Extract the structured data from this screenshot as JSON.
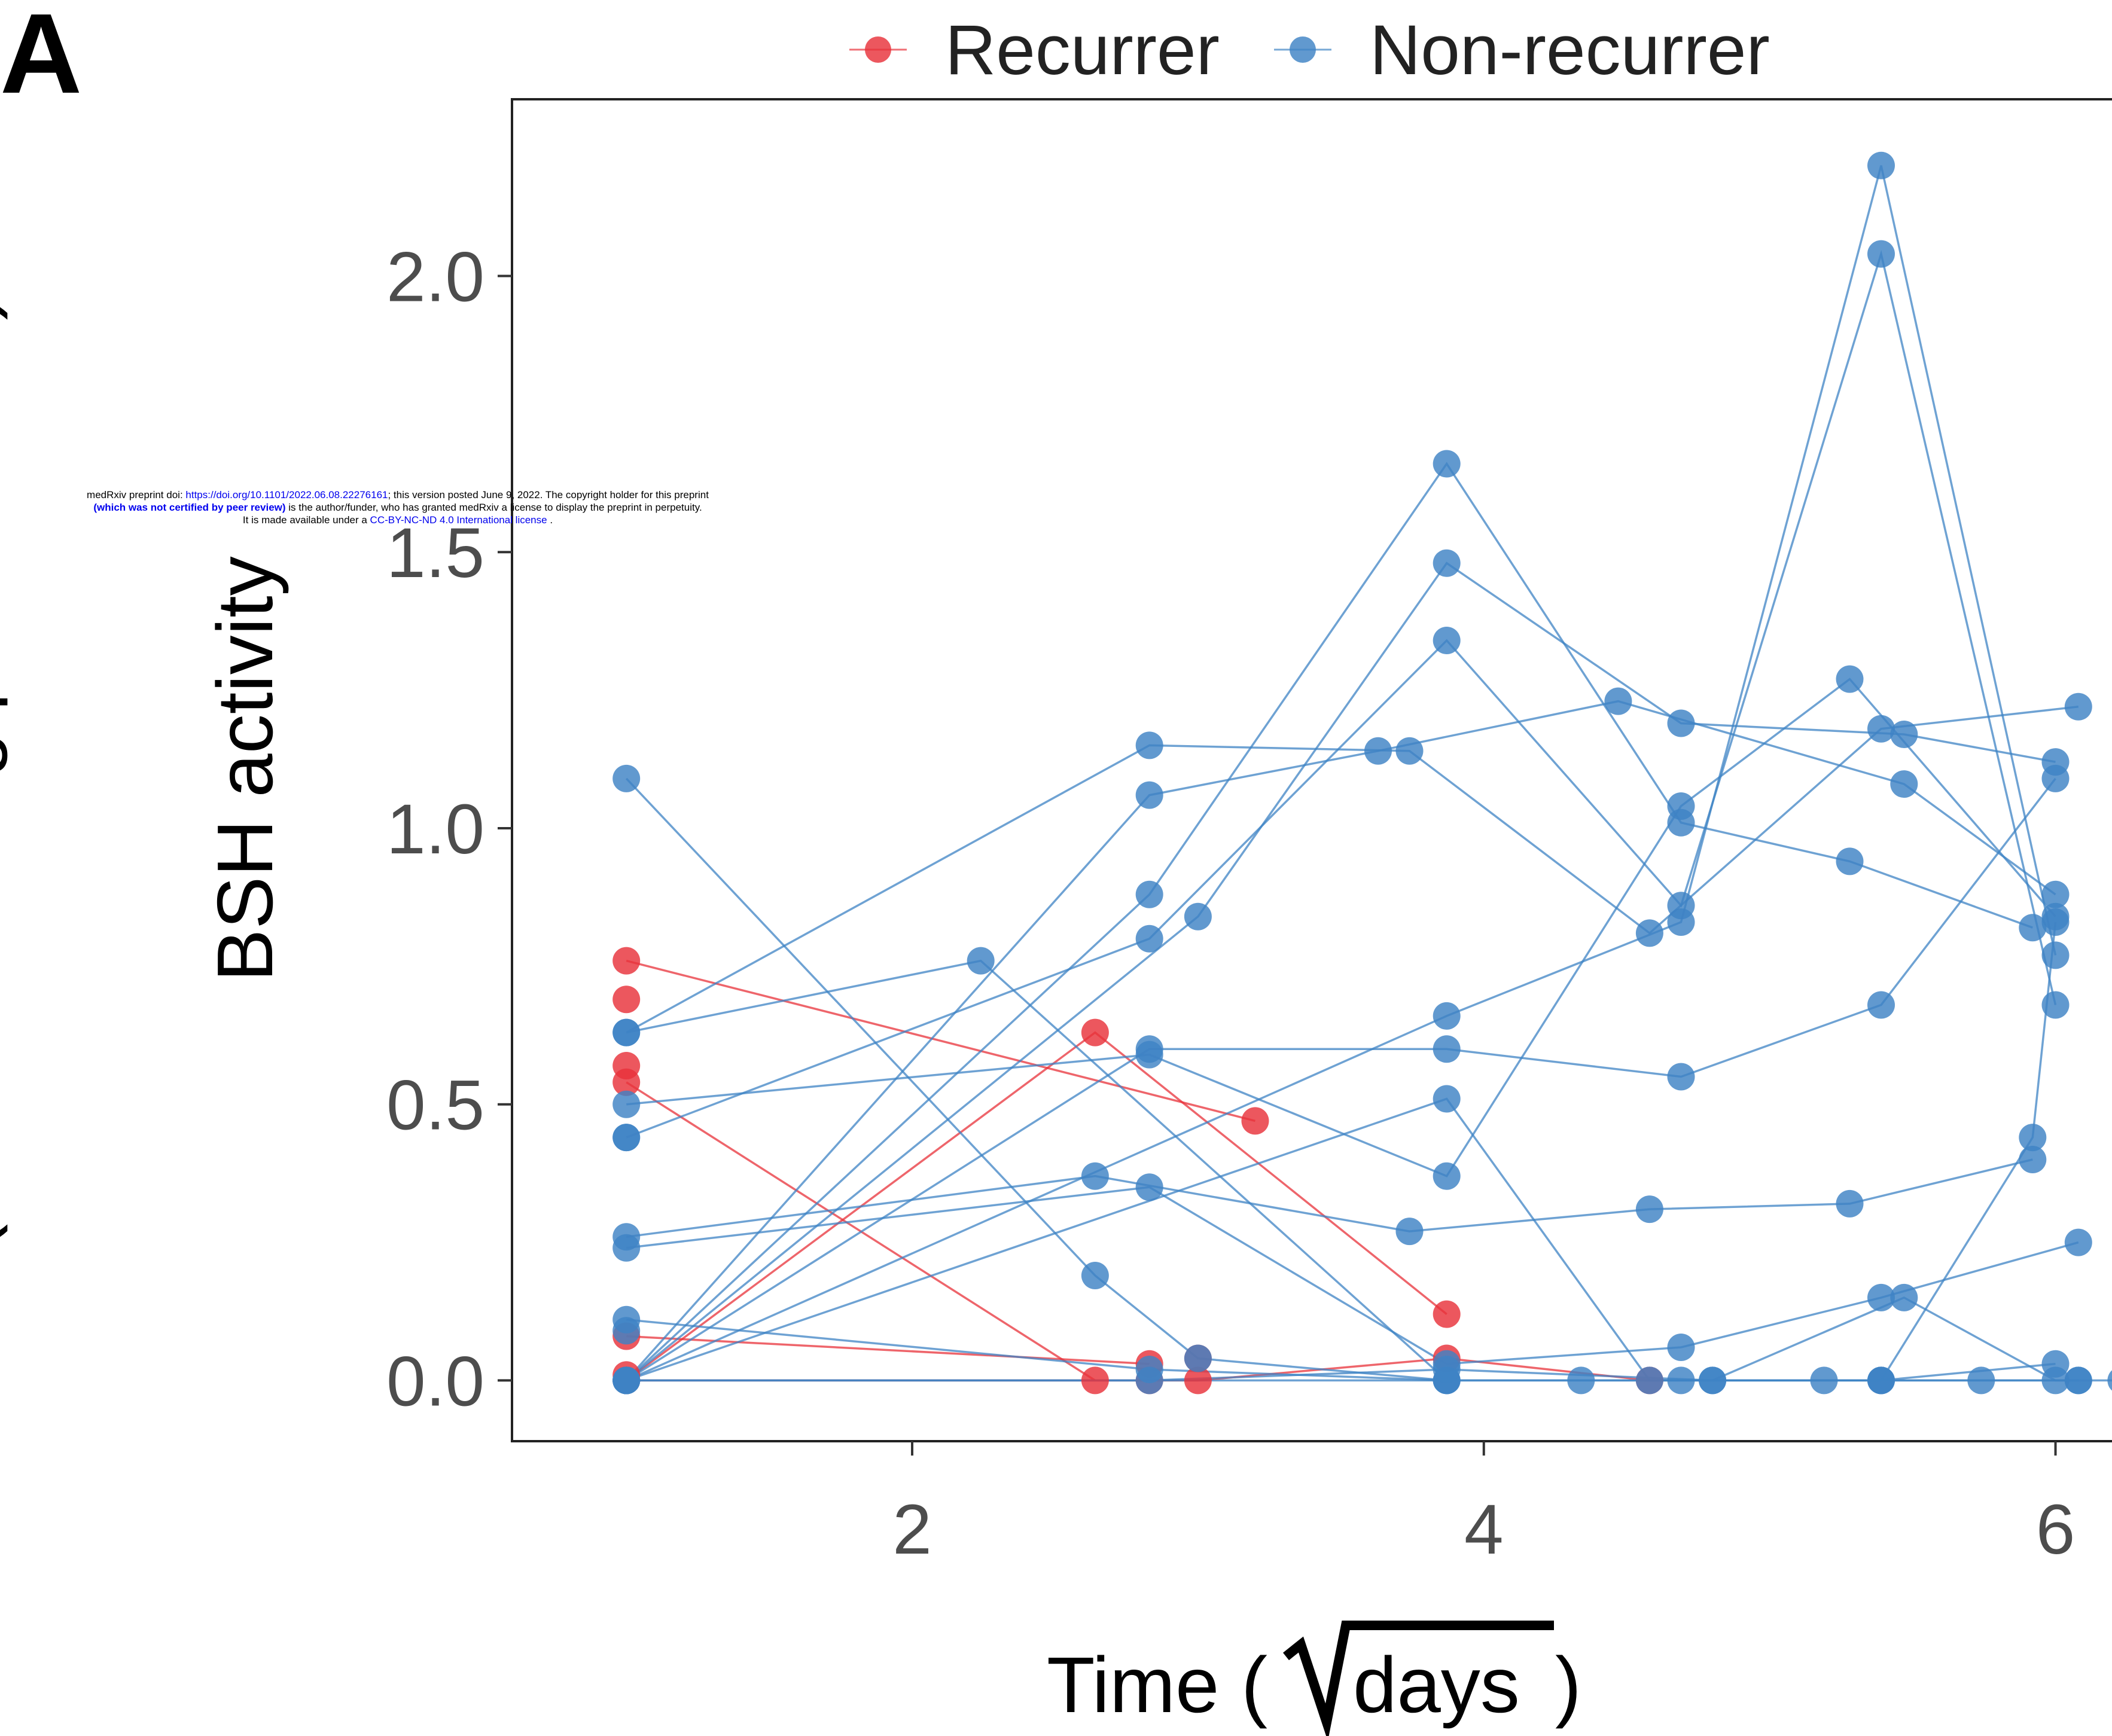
{
  "panel_label": "A",
  "notice": {
    "line1_prefix": "medRxiv preprint doi: ",
    "line1_link": "https://doi.org/10.1101/2022.06.08.22276161",
    "line1_suffix": "; this version posted June 9, 2022. The copyright holder for this preprint",
    "line2_link": "(which was not certified by peer review)",
    "line2_suffix": " is the author/funder, who has granted medRxiv a license to display the preprint in perpetuity.",
    "line3_prefix": "It is made available under a ",
    "line3_link": "CC-BY-NC-ND 4.0 International license",
    "line3_suffix": " ."
  },
  "chart_data": {
    "type": "line",
    "xlabel_prefix": "Time (",
    "xlabel_days": "days",
    "xlabel_suffix": ")",
    "ylabel_line1": "BSH activity",
    "ylabel_line2": "(nmol DCA/mg protein/min)",
    "xlim": [
      0.6,
      6.25
    ],
    "ylim": [
      -0.11,
      2.32
    ],
    "x_ticks": [
      2,
      4,
      6
    ],
    "x_tick_labels": [
      "2",
      "4",
      "6"
    ],
    "y_ticks": [
      0.0,
      0.5,
      1.0,
      1.5,
      2.0
    ],
    "y_tick_labels": [
      "0.0",
      "0.5",
      "1.0",
      "1.5",
      "2.0"
    ],
    "legend_position": "top",
    "groups": [
      {
        "name": "Recurrer",
        "color": "#e8323a"
      },
      {
        "name": "Non-recurrer",
        "color": "#3e83c4"
      }
    ],
    "series": [
      {
        "group": "Recurrer",
        "points": [
          [
            1.0,
            0.76
          ],
          [
            3.2,
            0.47
          ]
        ]
      },
      {
        "group": "Recurrer",
        "points": [
          [
            1.0,
            0.54
          ],
          [
            2.64,
            0.0
          ]
        ]
      },
      {
        "group": "Recurrer",
        "points": [
          [
            1.0,
            0.0
          ],
          [
            2.64,
            0.63
          ],
          [
            3.87,
            0.12
          ]
        ]
      },
      {
        "group": "Recurrer",
        "points": [
          [
            1.0,
            0.08
          ],
          [
            2.83,
            0.03
          ]
        ]
      },
      {
        "group": "Recurrer",
        "points": [
          [
            1.0,
            0.0
          ],
          [
            3.0,
            0.0
          ],
          [
            3.87,
            0.04
          ],
          [
            4.58,
            0.0
          ]
        ]
      },
      {
        "group": "Recurrer",
        "points": [
          [
            1.0,
            0.69
          ]
        ]
      },
      {
        "group": "Recurrer",
        "points": [
          [
            1.0,
            0.57
          ]
        ]
      },
      {
        "group": "Recurrer",
        "points": [
          [
            1.0,
            0.01
          ]
        ]
      },
      {
        "group": "Recurrer",
        "points": [
          [
            2.83,
            0.0
          ]
        ]
      },
      {
        "group": "Recurrer",
        "points": [
          [
            3.0,
            0.04
          ]
        ]
      },
      {
        "group": "Non-recurrer",
        "points": [
          [
            1.0,
            1.09
          ],
          [
            2.64,
            0.19
          ],
          [
            3.0,
            0.04
          ],
          [
            3.87,
            0.0
          ]
        ]
      },
      {
        "group": "Non-recurrer",
        "points": [
          [
            1.0,
            0.63
          ],
          [
            2.83,
            1.15
          ],
          [
            3.74,
            1.14
          ],
          [
            4.58,
            0.81
          ],
          [
            5.39,
            1.18
          ],
          [
            6.08,
            1.22
          ]
        ]
      },
      {
        "group": "Non-recurrer",
        "points": [
          [
            1.0,
            0.63
          ],
          [
            2.24,
            0.76
          ],
          [
            3.87,
            0.0
          ]
        ]
      },
      {
        "group": "Non-recurrer",
        "points": [
          [
            1.0,
            0.5
          ],
          [
            2.83,
            0.59
          ],
          [
            3.87,
            0.37
          ],
          [
            4.69,
            1.04
          ],
          [
            5.28,
            1.27
          ],
          [
            6.0,
            0.84
          ]
        ]
      },
      {
        "group": "Non-recurrer",
        "points": [
          [
            1.0,
            0.44
          ],
          [
            2.83,
            0.8
          ],
          [
            3.87,
            1.34
          ],
          [
            4.69,
            0.86
          ],
          [
            5.39,
            2.04
          ],
          [
            6.0,
            0.68
          ]
        ]
      },
      {
        "group": "Non-recurrer",
        "points": [
          [
            1.0,
            0.26
          ],
          [
            2.64,
            0.37
          ],
          [
            3.74,
            0.27
          ],
          [
            4.58,
            0.31
          ],
          [
            5.28,
            0.32
          ],
          [
            5.92,
            0.4
          ]
        ]
      },
      {
        "group": "Non-recurrer",
        "points": [
          [
            1.0,
            0.24
          ],
          [
            2.83,
            0.35
          ],
          [
            3.87,
            0.03
          ],
          [
            4.69,
            0.06
          ],
          [
            5.39,
            0.15
          ],
          [
            6.08,
            0.25
          ]
        ]
      },
      {
        "group": "Non-recurrer",
        "points": [
          [
            1.0,
            0.11
          ],
          [
            2.83,
            0.02
          ],
          [
            3.87,
            0.0
          ],
          [
            4.69,
            0.0
          ],
          [
            5.39,
            0.0
          ],
          [
            6.0,
            0.03
          ]
        ]
      },
      {
        "group": "Non-recurrer",
        "points": [
          [
            1.0,
            0.0
          ],
          [
            2.83,
            1.06
          ],
          [
            3.63,
            1.14
          ],
          [
            4.47,
            1.23
          ],
          [
            5.47,
            1.08
          ],
          [
            6.0,
            0.88
          ]
        ]
      },
      {
        "group": "Non-recurrer",
        "points": [
          [
            1.0,
            0.0
          ],
          [
            2.83,
            0.88
          ],
          [
            3.87,
            1.66
          ],
          [
            4.69,
            1.01
          ],
          [
            5.28,
            0.94
          ],
          [
            5.92,
            0.82
          ]
        ]
      },
      {
        "group": "Non-recurrer",
        "points": [
          [
            1.0,
            0.0
          ],
          [
            3.0,
            0.84
          ],
          [
            3.87,
            1.48
          ],
          [
            4.69,
            1.19
          ],
          [
            5.47,
            1.17
          ],
          [
            6.0,
            1.12
          ]
        ]
      },
      {
        "group": "Non-recurrer",
        "points": [
          [
            1.0,
            0.0
          ],
          [
            2.83,
            0.6
          ],
          [
            3.87,
            0.6
          ],
          [
            4.69,
            0.55
          ],
          [
            5.39,
            0.68
          ],
          [
            6.0,
            1.09
          ]
        ]
      },
      {
        "group": "Non-recurrer",
        "points": [
          [
            1.0,
            0.0
          ],
          [
            3.87,
            0.66
          ],
          [
            4.69,
            0.83
          ],
          [
            5.39,
            2.2
          ],
          [
            6.0,
            0.77
          ]
        ]
      },
      {
        "group": "Non-recurrer",
        "points": [
          [
            1.0,
            0.0
          ],
          [
            3.87,
            0.51
          ],
          [
            4.58,
            0.0
          ],
          [
            5.19,
            0.0
          ],
          [
            5.74,
            0.0
          ],
          [
            6.23,
            0.0
          ]
        ]
      },
      {
        "group": "Non-recurrer",
        "points": [
          [
            1.0,
            0.0
          ],
          [
            4.34,
            0.0
          ],
          [
            4.8,
            0.0
          ],
          [
            5.39,
            0.0
          ],
          [
            6.08,
            0.0
          ]
        ]
      },
      {
        "group": "Non-recurrer",
        "points": [
          [
            1.0,
            0.0
          ],
          [
            2.83,
            0.0
          ],
          [
            3.87,
            0.02
          ],
          [
            4.8,
            0.0
          ],
          [
            5.47,
            0.15
          ],
          [
            6.0,
            0.0
          ],
          [
            6.08,
            0.0
          ]
        ]
      },
      {
        "group": "Non-recurrer",
        "points": [
          [
            5.39,
            0.0
          ],
          [
            5.92,
            0.44
          ],
          [
            6.0,
            0.83
          ]
        ]
      },
      {
        "group": "Non-recurrer",
        "points": [
          [
            1.0,
            0.44
          ]
        ]
      },
      {
        "group": "Non-recurrer",
        "points": [
          [
            1.0,
            0.09
          ]
        ]
      }
    ]
  }
}
